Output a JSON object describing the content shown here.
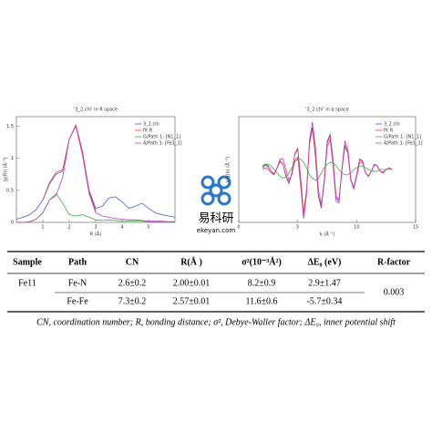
{
  "figures": [
    {
      "type": "line",
      "title": "'3_2.chi' in R space",
      "xlabel": "R (Å)",
      "ylabel": "|χ(R)| (Å⁻³)",
      "xlim": [
        0,
        6
      ],
      "ylim": [
        0,
        1.65
      ],
      "xticks": [
        1,
        2,
        3,
        4,
        5
      ],
      "yticks": [
        0,
        0.5,
        1,
        1.5
      ],
      "x": [
        0,
        0.25,
        0.5,
        0.75,
        1,
        1.25,
        1.5,
        1.75,
        2,
        2.25,
        2.5,
        2.75,
        3,
        3.25,
        3.5,
        3.75,
        4,
        4.25,
        4.5,
        4.75,
        5,
        5.25,
        5.5,
        5.75,
        6
      ],
      "series": [
        {
          "name": "3_2.chi",
          "color": "#4a5bd6",
          "values": [
            0.05,
            0.08,
            0.12,
            0.2,
            0.35,
            0.6,
            0.75,
            0.8,
            1.3,
            1.52,
            1.1,
            0.5,
            0.22,
            0.25,
            0.38,
            0.4,
            0.32,
            0.22,
            0.25,
            0.3,
            0.22,
            0.15,
            0.12,
            0.1,
            0.08
          ]
        },
        {
          "name": "fit R",
          "color": "#e0403a",
          "values": [
            null,
            null,
            null,
            null,
            0.35,
            0.62,
            0.78,
            0.82,
            1.3,
            1.52,
            1.1,
            0.48,
            0.18,
            null,
            null,
            null,
            null,
            null,
            null,
            null,
            null,
            null,
            null,
            null,
            null
          ]
        },
        {
          "name": "G/Path 1: [N1_1]",
          "color": "#3fae3f",
          "values": [
            0,
            0,
            0.01,
            0.05,
            0.15,
            0.35,
            0.45,
            0.3,
            0.12,
            0.1,
            0.12,
            0.08,
            0.04,
            0.03,
            0.04,
            0.03,
            0.02,
            0.02,
            0.02,
            0.02,
            0.01,
            0.01,
            0.01,
            0.01,
            0.01
          ]
        },
        {
          "name": "A/Path 1: [Fe1_1]",
          "color": "#c03cc0",
          "values": [
            0,
            0,
            0.01,
            0.05,
            0.15,
            0.35,
            0.42,
            0.7,
            1.3,
            1.5,
            1.05,
            0.45,
            0.15,
            0.1,
            0.08,
            0.06,
            0.05,
            0.04,
            0.04,
            0.03,
            0.02,
            0.02,
            0.02,
            0.01,
            0.01
          ]
        }
      ]
    },
    {
      "type": "line",
      "title": "'3_2.chi' in q space",
      "xlabel": "k (Å⁻¹)",
      "ylabel": "k²χ(k) (Å⁻³)",
      "xlim": [
        0,
        15
      ],
      "ylim": [
        -3,
        3
      ],
      "xticks": [
        0,
        5,
        10,
        15
      ],
      "x": [
        2,
        2.25,
        2.5,
        2.75,
        3,
        3.25,
        3.5,
        3.75,
        4,
        4.25,
        4.5,
        4.75,
        5,
        5.25,
        5.5,
        5.75,
        6,
        6.25,
        6.5,
        6.75,
        7,
        7.25,
        7.5,
        7.75,
        8,
        8.25,
        8.5,
        8.75,
        9,
        9.25,
        9.5,
        9.75,
        10,
        10.25,
        10.5,
        10.75,
        11,
        11.25,
        11.5,
        11.75,
        12,
        12.25,
        12.5,
        12.75,
        13
      ],
      "series": [
        {
          "name": "3_2.chi",
          "color": "#4a5bd6",
          "values": [
            0.1,
            0.3,
            0.2,
            -0.1,
            -0.3,
            0.1,
            0.5,
            0.3,
            -0.4,
            -0.8,
            -0.2,
            0.9,
            1.2,
            -0.5,
            -2.6,
            -1.2,
            1.5,
            2.4,
            0.8,
            -1.5,
            -2.2,
            -0.6,
            1.6,
            2.0,
            0.5,
            -1.6,
            -1.8,
            0,
            1.4,
            1.0,
            -0.6,
            -1.1,
            -0.3,
            0.6,
            0.5,
            -0.2,
            -0.4,
            -0.1,
            0.3,
            0.2,
            -0.1,
            -0.2,
            0,
            0.1,
            0
          ]
        },
        {
          "name": "fit R",
          "color": "#e0403a",
          "values": [
            0.1,
            0.25,
            0.15,
            -0.1,
            -0.25,
            0.1,
            0.45,
            0.3,
            -0.35,
            -0.75,
            -0.2,
            0.85,
            1.15,
            -0.5,
            -2.5,
            -1.15,
            1.45,
            2.3,
            0.8,
            -1.45,
            -2.1,
            -0.6,
            1.5,
            1.9,
            0.5,
            -1.5,
            -1.7,
            0,
            1.3,
            0.95,
            -0.55,
            -1.0,
            -0.3,
            0.55,
            0.45,
            -0.2,
            -0.35,
            -0.1,
            0.25,
            0.2,
            -0.1,
            -0.15,
            0,
            0.1,
            0
          ]
        },
        {
          "name": "G/Path 1: [N1_1]",
          "color": "#3fae3f",
          "values": [
            0.2,
            0.3,
            0.3,
            0.2,
            0,
            -0.2,
            -0.4,
            -0.5,
            -0.4,
            -0.2,
            0.1,
            0.4,
            0.6,
            0.6,
            0.4,
            0.1,
            -0.3,
            -0.5,
            -0.6,
            -0.5,
            -0.2,
            0.1,
            0.3,
            0.4,
            0.4,
            0.2,
            0,
            -0.2,
            -0.3,
            -0.3,
            -0.2,
            0,
            0.1,
            0.2,
            0.2,
            0.1,
            0,
            -0.1,
            -0.1,
            -0.1,
            0,
            0,
            0,
            0,
            0
          ]
        },
        {
          "name": "A/Path 1: [Fe1_1]",
          "color": "#c03cc0",
          "values": [
            0,
            0.1,
            0,
            -0.2,
            -0.3,
            0.1,
            0.6,
            0.6,
            0,
            -0.6,
            -0.3,
            0.5,
            0.7,
            -0.9,
            -2.8,
            -1.4,
            1.7,
            2.7,
            1.3,
            -1.1,
            -2.0,
            -0.8,
            1.3,
            1.7,
            0.2,
            -1.8,
            -1.9,
            0.1,
            1.6,
            1.2,
            -0.5,
            -1.1,
            -0.4,
            0.4,
            0.4,
            -0.2,
            -0.4,
            -0.1,
            0.3,
            0.2,
            -0.1,
            -0.2,
            0,
            0.1,
            0
          ]
        }
      ]
    }
  ],
  "watermark": {
    "name": "易科研",
    "url": "ekeyan.com"
  },
  "table": {
    "headers": [
      "Sample",
      "Path",
      "CN",
      "R(Å )",
      "σ²(10⁻³Å²)",
      "ΔE₀ (eV)",
      "R-factor"
    ],
    "sample": "Fe11",
    "rows": [
      [
        "Fe-N",
        "2.6±0.2",
        "2.00±0.01",
        "8.2±0.9",
        "2.9±1.47"
      ],
      [
        "Fe-Fe",
        "7.3±0.2",
        "2.57±0.01",
        "11.6±0.6",
        "-5.7±0.34"
      ]
    ],
    "r_factor": "0.003",
    "footnote": "CN, coordination number;  R, bonding distance;  σ², Debye-Waller factor;  ΔE₀, inner potential shift"
  }
}
